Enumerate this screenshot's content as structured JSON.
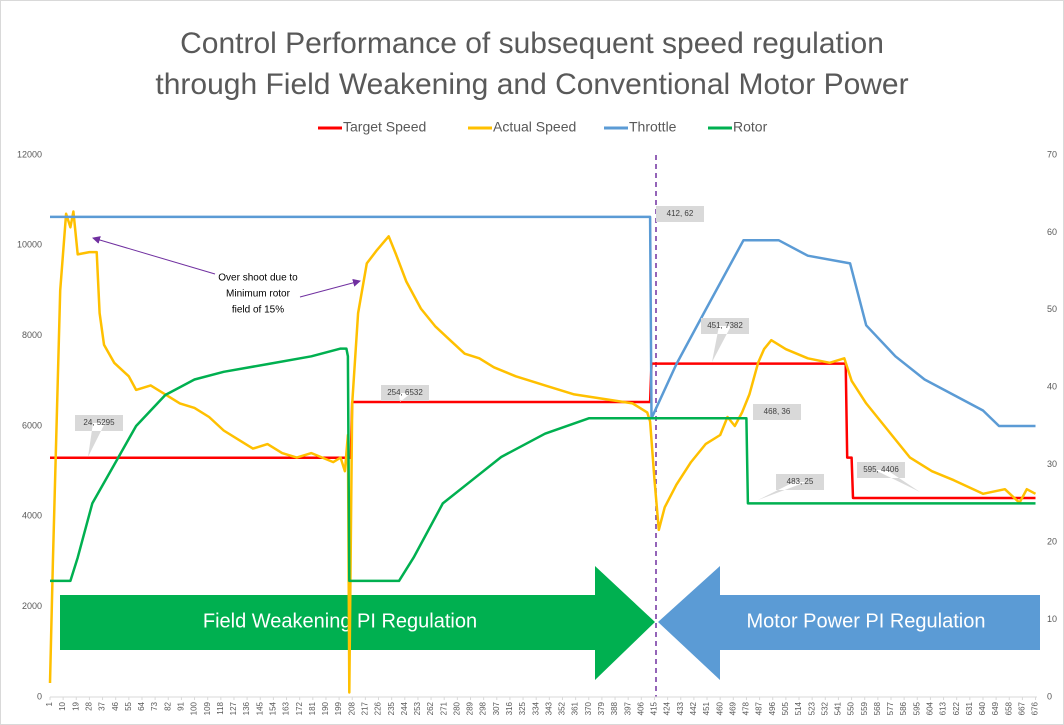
{
  "chart_data": {
    "type": "line",
    "title": [
      "Control Performance of subsequent speed regulation",
      "through Field Weakening and Conventional Motor Power"
    ],
    "xlim": [
      1,
      677
    ],
    "xticks": [
      1,
      10,
      19,
      28,
      37,
      46,
      55,
      64,
      73,
      82,
      91,
      100,
      109,
      118,
      127,
      136,
      145,
      154,
      163,
      172,
      181,
      190,
      199,
      208,
      217,
      226,
      235,
      244,
      253,
      262,
      271,
      280,
      289,
      298,
      307,
      316,
      325,
      334,
      343,
      352,
      361,
      370,
      379,
      388,
      397,
      406,
      415,
      424,
      433,
      442,
      451,
      460,
      469,
      478,
      487,
      496,
      505,
      514,
      523,
      532,
      541,
      550,
      559,
      568,
      577,
      586,
      595,
      604,
      613,
      622,
      631,
      640,
      649,
      658,
      667,
      676
    ],
    "ylim": [
      0,
      12000
    ],
    "yticks": [
      0,
      2000,
      4000,
      6000,
      8000,
      10000,
      12000
    ],
    "y2lim": [
      0,
      70
    ],
    "y2ticks": [
      0,
      10,
      20,
      30,
      40,
      50,
      60,
      70
    ],
    "grid": false,
    "legend": "top",
    "series": [
      {
        "name": "Target Speed",
        "color": "#ff0000",
        "x": [
          1,
          207,
          208,
          412,
          413,
          546,
          547,
          550,
          551,
          676
        ],
        "values": [
          5295,
          5295,
          6532,
          6532,
          7382,
          7382,
          5300,
          5300,
          4406,
          4406
        ]
      },
      {
        "name": "Actual Speed",
        "color": "#ffc000",
        "x": [
          1,
          3,
          8,
          12,
          15,
          17,
          20,
          28,
          33,
          35,
          38,
          45,
          55,
          60,
          70,
          80,
          90,
          100,
          110,
          120,
          130,
          140,
          150,
          160,
          170,
          180,
          195,
          200,
          203,
          205,
          206,
          208,
          212,
          218,
          225,
          233,
          238,
          245,
          255,
          265,
          275,
          285,
          295,
          305,
          320,
          340,
          360,
          380,
          400,
          410,
          412,
          415,
          418,
          422,
          430,
          440,
          450,
          460,
          465,
          470,
          475,
          480,
          486,
          490,
          495,
          505,
          520,
          535,
          545,
          550,
          560,
          575,
          590,
          605,
          620,
          640,
          655,
          665,
          670,
          676
        ],
        "values": [
          310,
          3000,
          9000,
          10700,
          10400,
          10750,
          9800,
          9850,
          9850,
          8500,
          7800,
          7400,
          7100,
          6800,
          6900,
          6700,
          6500,
          6400,
          6200,
          5900,
          5700,
          5500,
          5600,
          5400,
          5300,
          5400,
          5200,
          5300,
          5000,
          5800,
          100,
          6500,
          8500,
          9600,
          9900,
          10200,
          9800,
          9200,
          8600,
          8200,
          7900,
          7600,
          7500,
          7300,
          7100,
          6900,
          6700,
          6600,
          6500,
          6300,
          6100,
          4800,
          3700,
          4200,
          4700,
          5200,
          5600,
          5800,
          6200,
          6000,
          6300,
          6700,
          7400,
          7700,
          7900,
          7700,
          7500,
          7400,
          7500,
          7000,
          6500,
          5900,
          5300,
          5000,
          4800,
          4500,
          4600,
          4300,
          4600,
          4500
        ]
      },
      {
        "name": "Throttle",
        "color": "#5b9bd5",
        "axis": "y2",
        "x": [
          1,
          412,
          413,
          430,
          450,
          476,
          500,
          520,
          549,
          560,
          580,
          600,
          620,
          640,
          651,
          676
        ],
        "values": [
          62,
          62,
          36,
          43,
          50,
          59,
          59,
          57,
          56,
          48,
          44,
          41,
          39,
          37,
          35,
          35
        ]
      },
      {
        "name": "Rotor",
        "color": "#00b050",
        "axis": "y2",
        "x": [
          1,
          15,
          20,
          30,
          45,
          60,
          80,
          100,
          120,
          150,
          180,
          200,
          204,
          205,
          206,
          240,
          250,
          270,
          290,
          310,
          340,
          370,
          412,
          478,
          479,
          676
        ],
        "values": [
          15,
          15,
          18,
          25,
          30,
          35,
          39,
          41,
          42,
          43,
          44,
          45,
          45,
          44,
          15,
          15,
          18,
          25,
          28,
          31,
          34,
          36,
          36,
          36,
          25,
          25
        ]
      }
    ],
    "data_labels": [
      "24, 5295",
      "254, 6532",
      "412, 62",
      "451, 7382",
      "468, 36",
      "483, 25",
      "595, 4406"
    ],
    "annotation": [
      "Over shoot due to",
      "Minimum rotor",
      "field of 15%"
    ],
    "regions": [
      "Field Weakening PI Regulation",
      "Motor Power PI Regulation"
    ]
  }
}
